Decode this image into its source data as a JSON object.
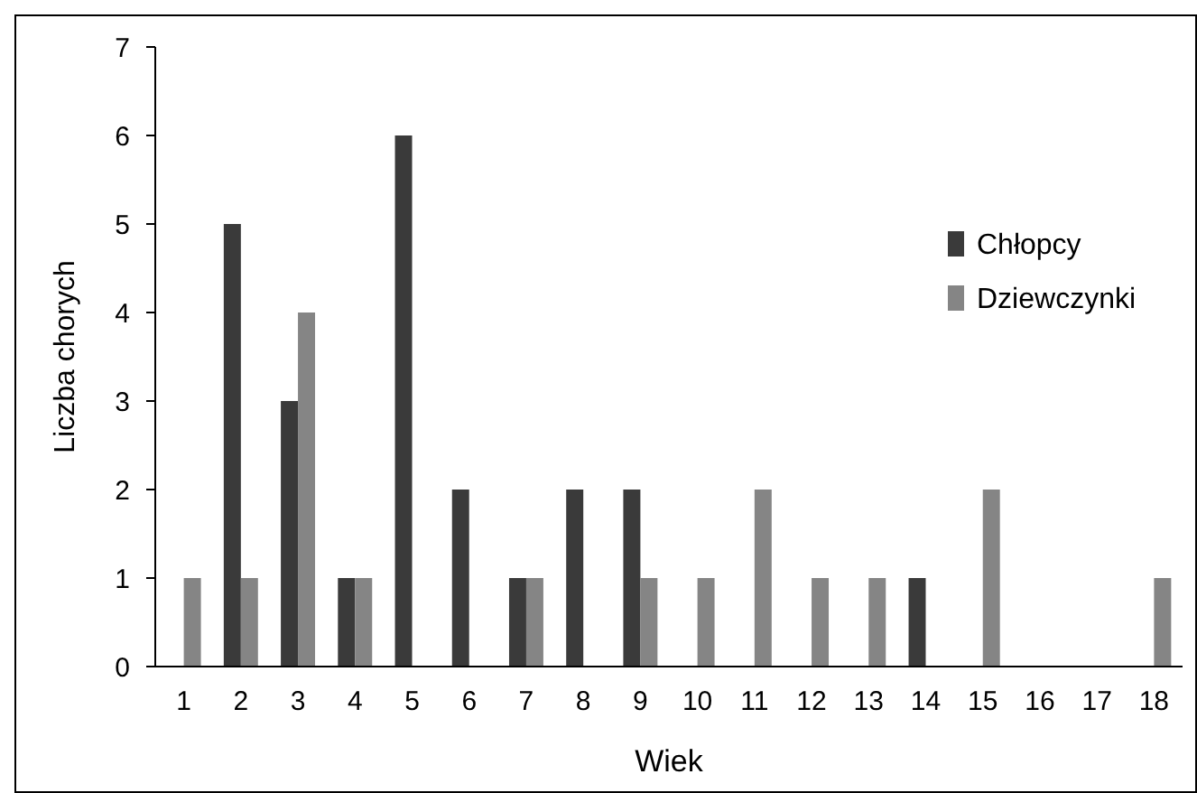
{
  "chart_data": {
    "type": "bar",
    "xlabel": "Wiek",
    "ylabel": "Liczba chorych",
    "categories": [
      "1",
      "2",
      "3",
      "4",
      "5",
      "6",
      "7",
      "8",
      "9",
      "10",
      "11",
      "12",
      "13",
      "14",
      "15",
      "16",
      "17",
      "18"
    ],
    "series": [
      {
        "name": "Chłopcy",
        "color": "#3a3a3a",
        "values": [
          0,
          5,
          3,
          1,
          6,
          2,
          1,
          2,
          2,
          0,
          0,
          0,
          0,
          1,
          0,
          0,
          0,
          0
        ]
      },
      {
        "name": "Dziewczynki",
        "color": "#858585",
        "values": [
          1,
          1,
          4,
          1,
          0,
          0,
          1,
          0,
          1,
          1,
          2,
          1,
          1,
          0,
          2,
          0,
          0,
          1
        ]
      }
    ],
    "ylim": [
      0,
      7
    ],
    "yticks": [
      0,
      1,
      2,
      3,
      4,
      5,
      6,
      7
    ],
    "grid": false,
    "legend": "top right"
  }
}
